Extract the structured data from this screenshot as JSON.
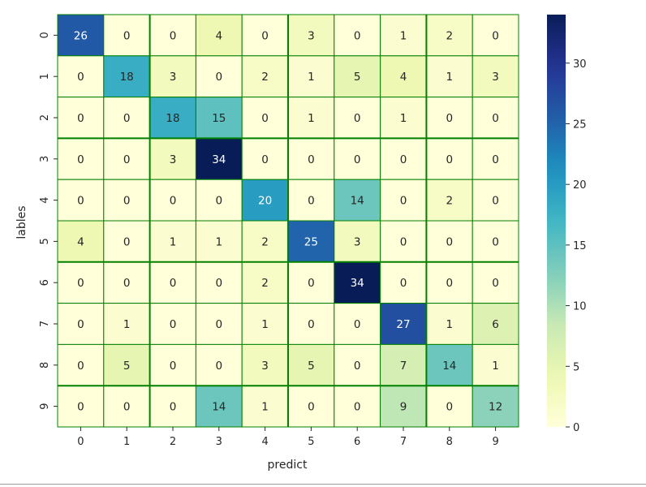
{
  "chart_data": {
    "type": "heatmap",
    "title": "",
    "xlabel": "predict",
    "ylabel": "lables",
    "x_categories": [
      "0",
      "1",
      "2",
      "3",
      "4",
      "5",
      "6",
      "7",
      "8",
      "9"
    ],
    "y_categories": [
      "0",
      "1",
      "2",
      "3",
      "4",
      "5",
      "6",
      "7",
      "8",
      "9"
    ],
    "matrix": [
      [
        26,
        0,
        0,
        4,
        0,
        3,
        0,
        1,
        2,
        0
      ],
      [
        0,
        18,
        3,
        0,
        2,
        1,
        5,
        4,
        1,
        3
      ],
      [
        0,
        0,
        18,
        15,
        0,
        1,
        0,
        1,
        0,
        0
      ],
      [
        0,
        0,
        3,
        34,
        0,
        0,
        0,
        0,
        0,
        0
      ],
      [
        0,
        0,
        0,
        0,
        20,
        0,
        14,
        0,
        2,
        0
      ],
      [
        4,
        0,
        1,
        1,
        2,
        25,
        3,
        0,
        0,
        0
      ],
      [
        0,
        0,
        0,
        0,
        2,
        0,
        34,
        0,
        0,
        0
      ],
      [
        0,
        1,
        0,
        0,
        1,
        0,
        0,
        27,
        1,
        6
      ],
      [
        0,
        5,
        0,
        0,
        3,
        5,
        0,
        7,
        14,
        1
      ],
      [
        0,
        0,
        0,
        14,
        1,
        0,
        0,
        9,
        0,
        12
      ]
    ],
    "colormap": "YlGnBu",
    "value_range": [
      0,
      34
    ],
    "colorbar_ticks": [
      0,
      5,
      10,
      15,
      20,
      25,
      30
    ],
    "cell_border_color": "#008000",
    "annotated": true
  }
}
